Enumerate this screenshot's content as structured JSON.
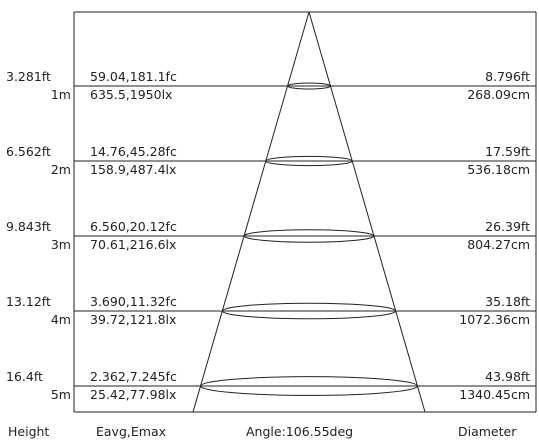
{
  "title": "",
  "footer": {
    "height_label": "Height",
    "illuminance_label": "Eavg,Emax",
    "angle_label": "Angle:106.55deg",
    "diameter_label": "Diameter"
  },
  "beam": {
    "angle_deg": 106.55
  },
  "rows": [
    {
      "height_ft": "3.281ft",
      "height_m": "1m",
      "fc": "59.04,181.1fc",
      "lx": "635.5,1950lx",
      "diam_ft": "8.796ft",
      "diam_cm": "268.09cm"
    },
    {
      "height_ft": "6.562ft",
      "height_m": "2m",
      "fc": "14.76,45.28fc",
      "lx": "158.9,487.4lx",
      "diam_ft": "17.59ft",
      "diam_cm": "536.18cm"
    },
    {
      "height_ft": "9.843ft",
      "height_m": "3m",
      "fc": "6.560,20.12fc",
      "lx": "70.61,216.6lx",
      "diam_ft": "26.39ft",
      "diam_cm": "804.27cm"
    },
    {
      "height_ft": "13.12ft",
      "height_m": "4m",
      "fc": "3.690,11.32fc",
      "lx": "39.72,121.8lx",
      "diam_ft": "35.18ft",
      "diam_cm": "1072.36cm"
    },
    {
      "height_ft": "16.4ft",
      "height_m": "5m",
      "fc": "2.362,7.245fc",
      "lx": "25.42,77.98lx",
      "diam_ft": "43.98ft",
      "diam_cm": "1340.45cm"
    }
  ]
}
